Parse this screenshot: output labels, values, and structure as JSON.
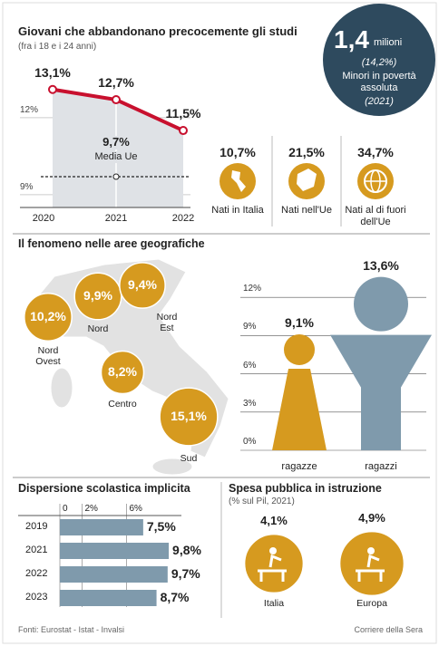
{
  "header_box": {
    "value": "1,4",
    "unit": "milioni",
    "share": "(14,2%)",
    "caption": "Minori in povertà assoluta",
    "year": "(2021)"
  },
  "birthplace": {
    "items": [
      {
        "value": "10,7%",
        "label": "Nati in Italia"
      },
      {
        "value": "21,5%",
        "label": "Nati nell'Ue"
      },
      {
        "value": "34,7%",
        "label": "Nati al di fuori dell'Ue"
      }
    ]
  },
  "chart_data": [
    {
      "type": "line",
      "title": "Giovani che abbandonano precocemente gli studi",
      "subtitle": "(fra i 18 e i 24 anni)",
      "x": [
        "2020",
        "2021",
        "2022"
      ],
      "values": [
        13.1,
        12.7,
        11.5
      ],
      "value_labels": [
        "13,1%",
        "12,7%",
        "11,5%"
      ],
      "color": "#c8102e",
      "ylim": [
        8.5,
        13.5
      ],
      "yticks": [
        {
          "value": 12,
          "label": "12%"
        },
        {
          "value": 9,
          "label": "9%"
        }
      ],
      "reference": {
        "value": 9.7,
        "label": "9,7%",
        "text": "Media Ue"
      }
    },
    {
      "type": "bubble",
      "title": "Il fenomeno nelle aree geografiche",
      "categories": [
        "Nord Ovest",
        "Nord",
        "Nord Est",
        "Centro",
        "Sud"
      ],
      "values": [
        10.2,
        9.9,
        9.4,
        8.2,
        15.1
      ],
      "value_labels": [
        "10,2%",
        "9,9%",
        "9,4%",
        "8,2%",
        "15,1%"
      ],
      "color": "#d69a1f"
    },
    {
      "type": "figure_bar",
      "categories": [
        "ragazze",
        "ragazzi"
      ],
      "values": [
        9.1,
        13.6
      ],
      "value_labels": [
        "9,1%",
        "13,6%"
      ],
      "colors": [
        "#d69a1f",
        "#7f9aac"
      ],
      "ylim": [
        0,
        14
      ],
      "yticks": [
        {
          "value": 0,
          "label": "0%"
        },
        {
          "value": 3,
          "label": "3%"
        },
        {
          "value": 6,
          "label": "6%"
        },
        {
          "value": 9,
          "label": "9%"
        },
        {
          "value": 12,
          "label": "12%"
        }
      ],
      "grid": true
    },
    {
      "type": "hbar",
      "title": "Dispersione scolastica implicita",
      "categories": [
        "2019",
        "2021",
        "2022",
        "2023"
      ],
      "values": [
        7.5,
        9.8,
        9.7,
        8.7
      ],
      "value_labels": [
        "7,5%",
        "9,8%",
        "9,7%",
        "8,7%"
      ],
      "color": "#7f9aac",
      "xlim": [
        0,
        10
      ],
      "xticks": [
        0,
        {
          "value": 2,
          "label": "2%"
        },
        {
          "value": 6,
          "label": "6%"
        }
      ]
    },
    {
      "type": "bubble",
      "title": "Spesa pubblica in istruzione",
      "subtitle": "(% sul Pil, 2021)",
      "categories": [
        "Italia",
        "Europa"
      ],
      "values": [
        4.1,
        4.9
      ],
      "value_labels": [
        "4,1%",
        "4,9%"
      ],
      "color": "#d69a1f"
    }
  ],
  "footer": {
    "source": "Fonti: Eurostat - Istat - Invalsi",
    "publisher": "Corriere della Sera"
  }
}
